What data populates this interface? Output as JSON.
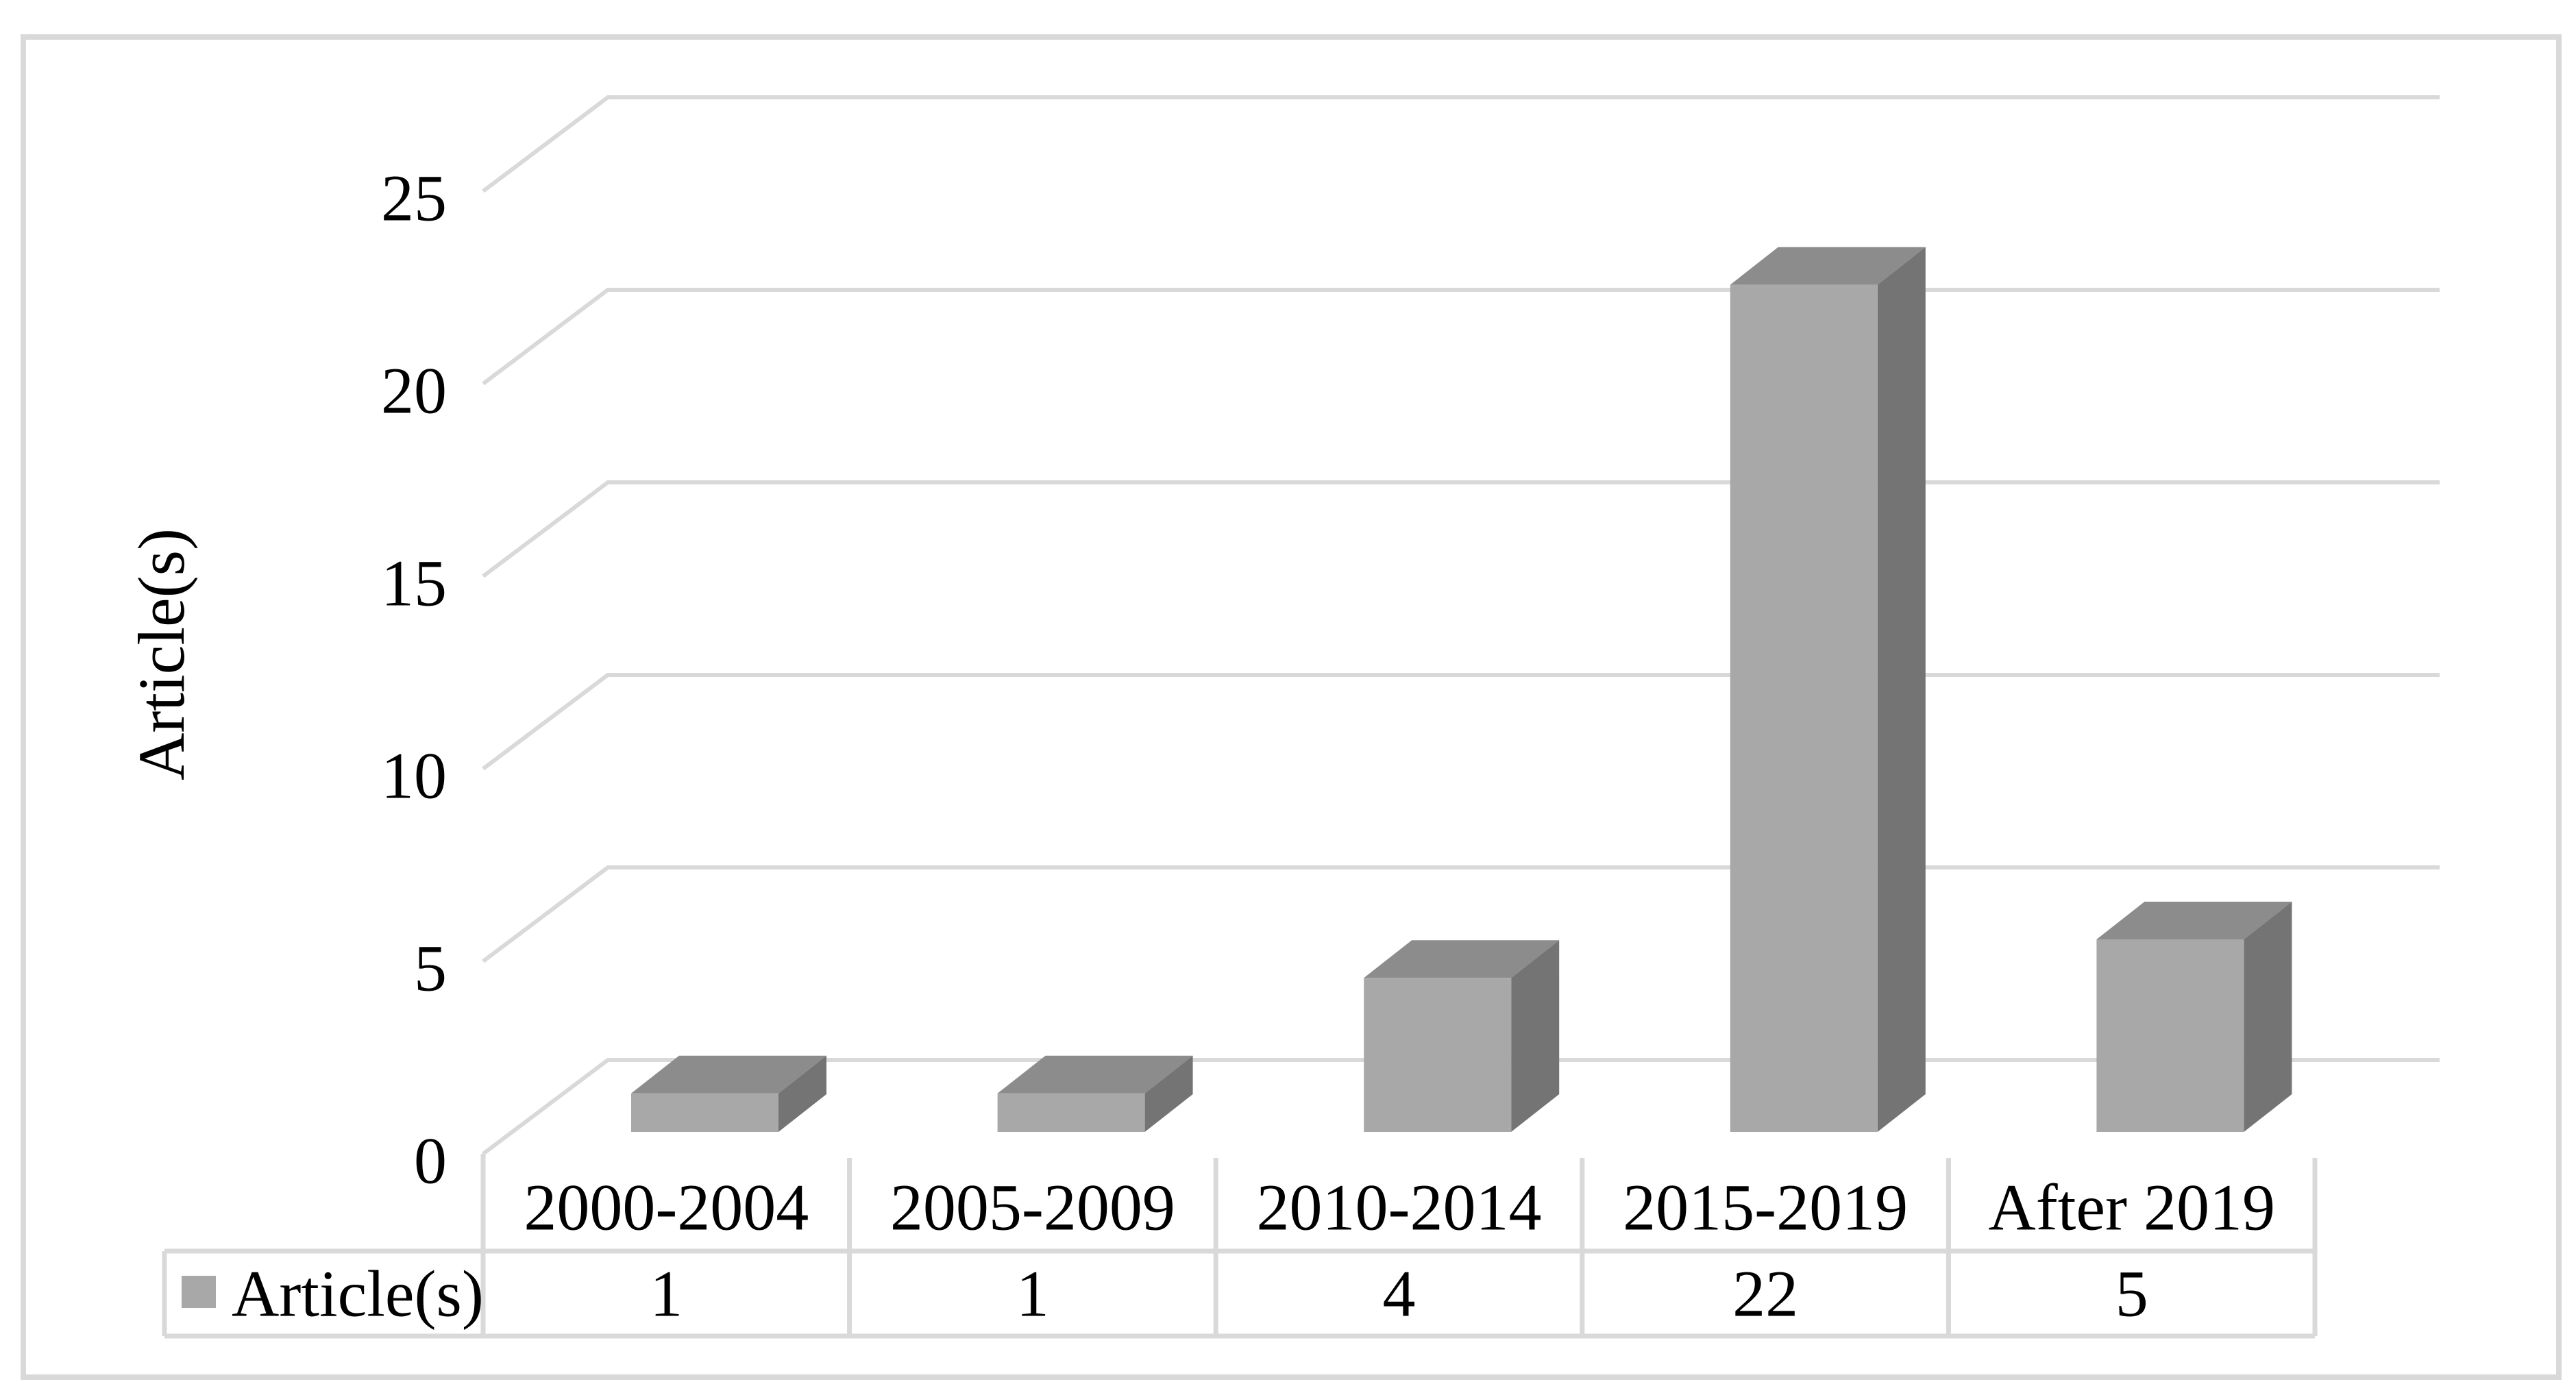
{
  "figure": {
    "background": "#ffffff"
  },
  "chart_data": {
    "type": "bar",
    "style": "3d-column",
    "title": "",
    "categories": [
      "2000-2004",
      "2005-2009",
      "2010-2014",
      "2015-2019",
      "After 2019"
    ],
    "series": [
      {
        "name": "Article(s)",
        "values": [
          1,
          1,
          4,
          22,
          5
        ]
      }
    ],
    "xlabel": "",
    "ylabel": "Article(s)",
    "ylim": [
      0,
      25
    ],
    "ytick_step": 5,
    "ytick_labels": [
      "0",
      "5",
      "10",
      "15",
      "20",
      "25"
    ],
    "grid": true,
    "legend_position": "data-table-left"
  },
  "data_table": {
    "legend_label": "Article(s)",
    "row_values": [
      "1",
      "1",
      "4",
      "22",
      "5"
    ]
  },
  "colors": {
    "bar_front": "#a8a8a8",
    "bar_top": "#8c8c8c",
    "bar_side": "#747474",
    "gridline": "#d9d9d9",
    "table_border": "#d9d9d9",
    "outer_border": "#d9d9d9",
    "legend_swatch": "#a8a8a8",
    "text": "#000000"
  }
}
